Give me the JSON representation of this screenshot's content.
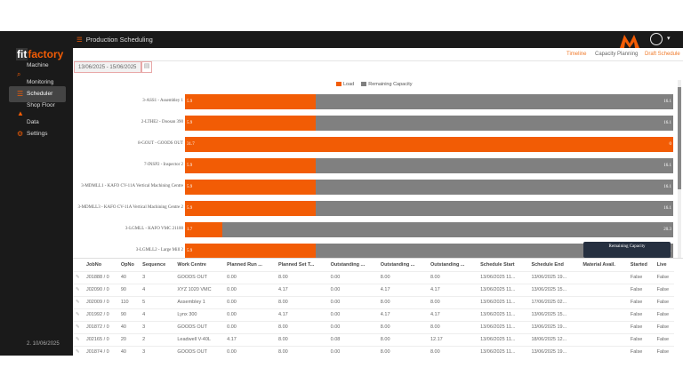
{
  "header": {
    "title": "Production Scheduling",
    "user_icon": "user-circle-icon"
  },
  "sidebar": {
    "brand_prefix": "fit",
    "brand_suffix": "factory",
    "items": [
      {
        "label": "Machine"
      },
      {
        "label": "Monitoring"
      },
      {
        "label": "Scheduler"
      },
      {
        "label": "Shop Floor"
      },
      {
        "label": "Data"
      },
      {
        "label": "Settings"
      }
    ],
    "active": "Scheduler",
    "date": "2. 10/06/2025"
  },
  "tabs": [
    {
      "label": "Timeline"
    },
    {
      "label": "Capacity Planning"
    },
    {
      "label": "Draft Schedule"
    }
  ],
  "date_range": "13/06/2025 - 15/06/2025",
  "chart_data": {
    "type": "bar",
    "orientation": "horizontal",
    "stacked": true,
    "legend": [
      "Load",
      "Remaining Capacity"
    ],
    "colors": {
      "Load": "#f25c05",
      "Remaining Capacity": "#808080"
    },
    "categories": [
      "3-ASS1 - Assembley 1",
      "2-LTHE2 - Doosan 390",
      "8-GOUT - GOODS OUT",
      "7-INSP2 - Inspector 2",
      "3-MDMLL1 - KAFO CV-11A Vertical Machining Centre",
      "3-MDMLL3 - KAFO CV-11A Vertical Machining Centre 2",
      "3-LGMLL - KAFO VMC 21100",
      "3-LGMLL2 - Large Mill 2"
    ],
    "series": [
      {
        "name": "Load",
        "values": [
          5.9,
          5.9,
          31.7,
          5.9,
          5.9,
          5.9,
          1.7,
          5.9
        ]
      },
      {
        "name": "Remaining Capacity",
        "values": [
          16.1,
          16.1,
          0,
          16.1,
          16.1,
          16.1,
          20.3,
          16.1
        ]
      }
    ]
  },
  "tooltip": {
    "title": "Remaining Capacity"
  },
  "table": {
    "columns": [
      "JobNo",
      "OpNo",
      "Sequence",
      "Work Centre",
      "Planned Run ...",
      "Planned Set T...",
      "Outstanding ...",
      "Outstanding ...",
      "Outstanding ...",
      "Schedule Start",
      "Schedule End",
      "Material Avail.",
      "Started",
      "Live"
    ],
    "rows": [
      [
        "J01888 / 0",
        "40",
        "3",
        "GOODS OUT",
        "0.00",
        "8.00",
        "0.00",
        "8.00",
        "8.00",
        "13/06/2025 11...",
        "13/06/2025 19...",
        "",
        "False",
        "False"
      ],
      [
        "J02090 / 0",
        "90",
        "4",
        "XYZ 1020 VMC",
        "0.00",
        "4.17",
        "0.00",
        "4.17",
        "4.17",
        "13/06/2025 11...",
        "13/06/2025 15...",
        "",
        "False",
        "False"
      ],
      [
        "J02009 / 0",
        "110",
        "5",
        "Assembley 1",
        "0.00",
        "8.00",
        "0.00",
        "8.00",
        "8.00",
        "13/06/2025 11...",
        "17/06/2025 02...",
        "",
        "False",
        "False"
      ],
      [
        "J01992 / 0",
        "90",
        "4",
        "Lynx 300",
        "0.00",
        "4.17",
        "0.00",
        "4.17",
        "4.17",
        "13/06/2025 11...",
        "13/06/2025 15...",
        "",
        "False",
        "False"
      ],
      [
        "J01872 / 0",
        "40",
        "3",
        "GOODS OUT",
        "0.00",
        "8.00",
        "0.00",
        "8.00",
        "8.00",
        "13/06/2025 11...",
        "13/06/2025 19...",
        "",
        "False",
        "False"
      ],
      [
        "J02165 / 0",
        "20",
        "2",
        "Leadwell V-40L",
        "4.17",
        "8.00",
        "0.08",
        "8.00",
        "12.17",
        "13/06/2025 11...",
        "18/06/2025 12...",
        "",
        "False",
        "False"
      ],
      [
        "J01874 / 0",
        "40",
        "3",
        "GOODS OUT",
        "0.00",
        "8.00",
        "0.00",
        "8.00",
        "8.00",
        "13/06/2025 11...",
        "13/06/2025 19...",
        "",
        "False",
        "False"
      ]
    ]
  }
}
